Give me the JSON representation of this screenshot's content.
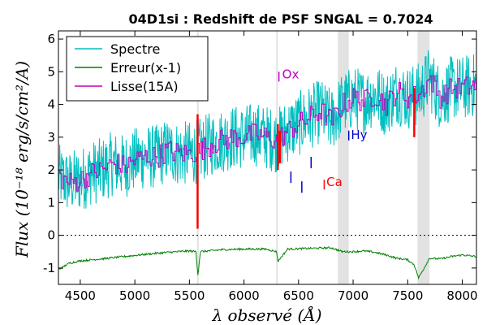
{
  "chart_data": {
    "type": "line",
    "title": "04D1si : Redshift de PSF SNGAL = 0.7024",
    "xlabel": "λ observé (Å)",
    "ylabel": "Flux (10⁻¹⁸ erg/s/cm²/A)",
    "xlim": [
      4300,
      8130
    ],
    "ylim": [
      -1.5,
      6.25
    ],
    "x_ticks": [
      "4500",
      "5000",
      "5500",
      "6000",
      "6500",
      "7000",
      "7500",
      "8000"
    ],
    "y_ticks": [
      "-1",
      "0",
      "1",
      "2",
      "3",
      "4",
      "5",
      "6"
    ],
    "zero_line": true,
    "legend_position": "top-left",
    "legend": [
      {
        "label": "Spectre",
        "color": "#00bfbf"
      },
      {
        "label": "Erreur(x-1)",
        "color": "#008000"
      },
      {
        "label": "Lisse(15A)",
        "color": "#bf00bf"
      }
    ],
    "shaded_bands": [
      [
        5570,
        5585
      ],
      [
        6295,
        6310
      ],
      [
        6860,
        6960
      ],
      [
        7590,
        7700
      ]
    ],
    "series": [
      {
        "name": "Spectre",
        "color": "#00bfbf",
        "x": [
          4300,
          4400,
          4500,
          4600,
          4700,
          4800,
          4900,
          5000,
          5100,
          5200,
          5300,
          5400,
          5500,
          5600,
          5700,
          5800,
          5900,
          6000,
          6100,
          6200,
          6300,
          6400,
          6500,
          6600,
          6700,
          6800,
          6900,
          7000,
          7100,
          7200,
          7300,
          7400,
          7500,
          7600,
          7700,
          7800,
          7900,
          8000,
          8130
        ],
        "y": [
          1.8,
          1.6,
          1.7,
          1.9,
          2.0,
          2.2,
          2.1,
          2.3,
          2.4,
          2.4,
          2.6,
          2.5,
          2.5,
          2.6,
          2.8,
          2.9,
          3.0,
          3.0,
          3.1,
          3.0,
          2.9,
          3.2,
          3.4,
          3.6,
          3.8,
          3.5,
          4.0,
          4.2,
          4.1,
          4.3,
          4.0,
          4.4,
          4.2,
          4.3,
          4.8,
          4.2,
          4.5,
          4.5,
          4.6
        ],
        "noise": 1.0
      },
      {
        "name": "Lisse(15A)",
        "color": "#bf00bf",
        "x": [
          4300,
          4400,
          4500,
          4600,
          4700,
          4800,
          4900,
          5000,
          5100,
          5200,
          5300,
          5400,
          5500,
          5600,
          5700,
          5800,
          5900,
          6000,
          6100,
          6200,
          6300,
          6400,
          6500,
          6600,
          6700,
          6800,
          6900,
          7000,
          7100,
          7200,
          7300,
          7400,
          7500,
          7600,
          7700,
          7800,
          7900,
          8000,
          8130
        ],
        "y": [
          1.8,
          1.6,
          1.7,
          1.9,
          2.0,
          2.2,
          2.1,
          2.3,
          2.4,
          2.4,
          2.6,
          2.5,
          2.5,
          2.6,
          2.8,
          2.9,
          3.0,
          3.0,
          3.1,
          3.0,
          2.9,
          3.2,
          3.4,
          3.6,
          3.8,
          3.5,
          4.0,
          4.2,
          4.1,
          4.3,
          4.0,
          4.4,
          4.2,
          4.3,
          4.8,
          4.2,
          4.5,
          4.5,
          4.6
        ],
        "noise": 0.35
      },
      {
        "name": "Erreur(x-1)",
        "color": "#008000",
        "x": [
          4300,
          4400,
          4500,
          4700,
          4900,
          5100,
          5300,
          5500,
          5560,
          5578,
          5600,
          5800,
          6000,
          6200,
          6300,
          6310,
          6400,
          6600,
          6800,
          6900,
          7000,
          7100,
          7200,
          7300,
          7400,
          7500,
          7560,
          7600,
          7650,
          7700,
          7800,
          7900,
          8000,
          8130
        ],
        "y": [
          -1.05,
          -0.85,
          -0.78,
          -0.72,
          -0.65,
          -0.58,
          -0.52,
          -0.48,
          -0.5,
          -1.2,
          -0.5,
          -0.44,
          -0.42,
          -0.42,
          -0.5,
          -0.8,
          -0.42,
          -0.4,
          -0.38,
          -0.5,
          -0.5,
          -0.48,
          -0.52,
          -0.6,
          -0.7,
          -0.75,
          -0.9,
          -1.3,
          -1.0,
          -0.7,
          -0.72,
          -0.65,
          -0.6,
          -0.65
        ],
        "noise": 0.03
      }
    ],
    "red_segments": [
      {
        "x": 5575,
        "y_low": 0.2,
        "y_high": 3.7
      },
      {
        "x": 6310,
        "y_low": 2.0,
        "y_high": 3.4
      },
      {
        "x": 6330,
        "y_low": 2.2,
        "y_high": 3.2
      },
      {
        "x": 7560,
        "y_low": 3.0,
        "y_high": 4.5
      }
    ],
    "line_markers": [
      {
        "label": "Ox",
        "color": "#bf00bf",
        "x": 6320,
        "y_low": 4.7,
        "y_high": 5.0,
        "label_x": 6350,
        "label_y": 4.8
      },
      {
        "label": "Ca",
        "color": "#ff0000",
        "x": 6735,
        "y_low": 1.4,
        "y_high": 1.7,
        "label_x": 6755,
        "label_y": 1.5
      },
      {
        "label": "Hy",
        "color": "#0000cc",
        "x": 6960,
        "y_low": 2.9,
        "y_high": 3.2,
        "label_x": 6980,
        "label_y": 2.95
      }
    ],
    "blue_ticks": [
      {
        "x": 6430,
        "y_low": 1.6,
        "y_high": 1.95
      },
      {
        "x": 6530,
        "y_low": 1.3,
        "y_high": 1.65
      },
      {
        "x": 6615,
        "y_low": 2.05,
        "y_high": 2.4
      }
    ]
  }
}
